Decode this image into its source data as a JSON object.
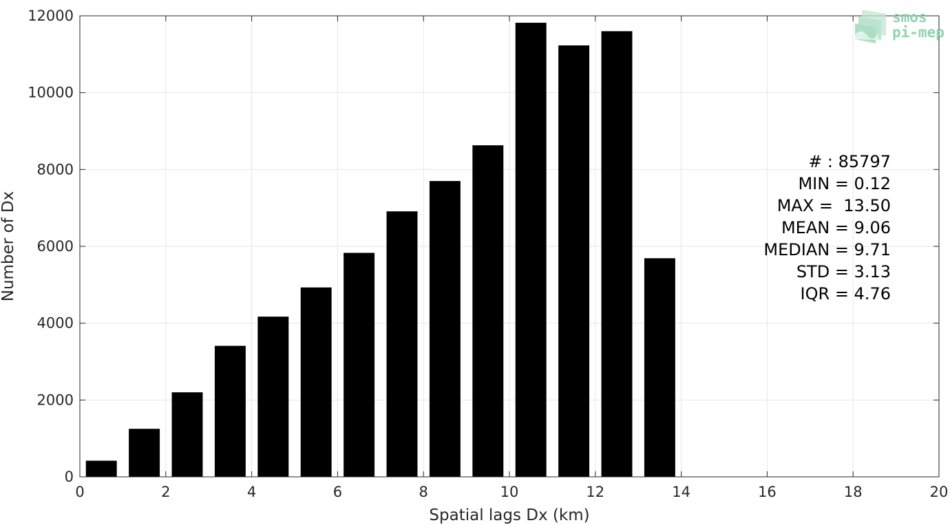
{
  "chart_data": {
    "type": "bar",
    "title": "",
    "xlabel": "Spatial lags Dx (km)",
    "ylabel": "Number of Dx",
    "xlim": [
      0,
      20
    ],
    "ylim": [
      0,
      12000
    ],
    "xticks": [
      0,
      2,
      4,
      6,
      8,
      10,
      12,
      14,
      16,
      18,
      20
    ],
    "yticks": [
      0,
      2000,
      4000,
      6000,
      8000,
      10000,
      12000
    ],
    "grid": true,
    "bar_color": "#000000",
    "bin_width": 1,
    "x": [
      0.5,
      1.5,
      2.5,
      3.5,
      4.5,
      5.5,
      6.5,
      7.5,
      8.5,
      9.5,
      10.5,
      11.5,
      12.5,
      13.5
    ],
    "values": [
      420,
      1250,
      2200,
      3410,
      4170,
      4930,
      5830,
      6910,
      7700,
      8630,
      11820,
      11230,
      11600,
      5690
    ],
    "annotations": [
      "# : 85797",
      "MIN = 0.12",
      "MAX =  13.50",
      "MEAN = 9.06",
      "MEDIAN = 9.71",
      "STD = 3.13",
      "IQR = 4.76"
    ]
  },
  "logo": {
    "line1": "smos",
    "line2": "pi-mep",
    "color": "#8fd3b0"
  }
}
